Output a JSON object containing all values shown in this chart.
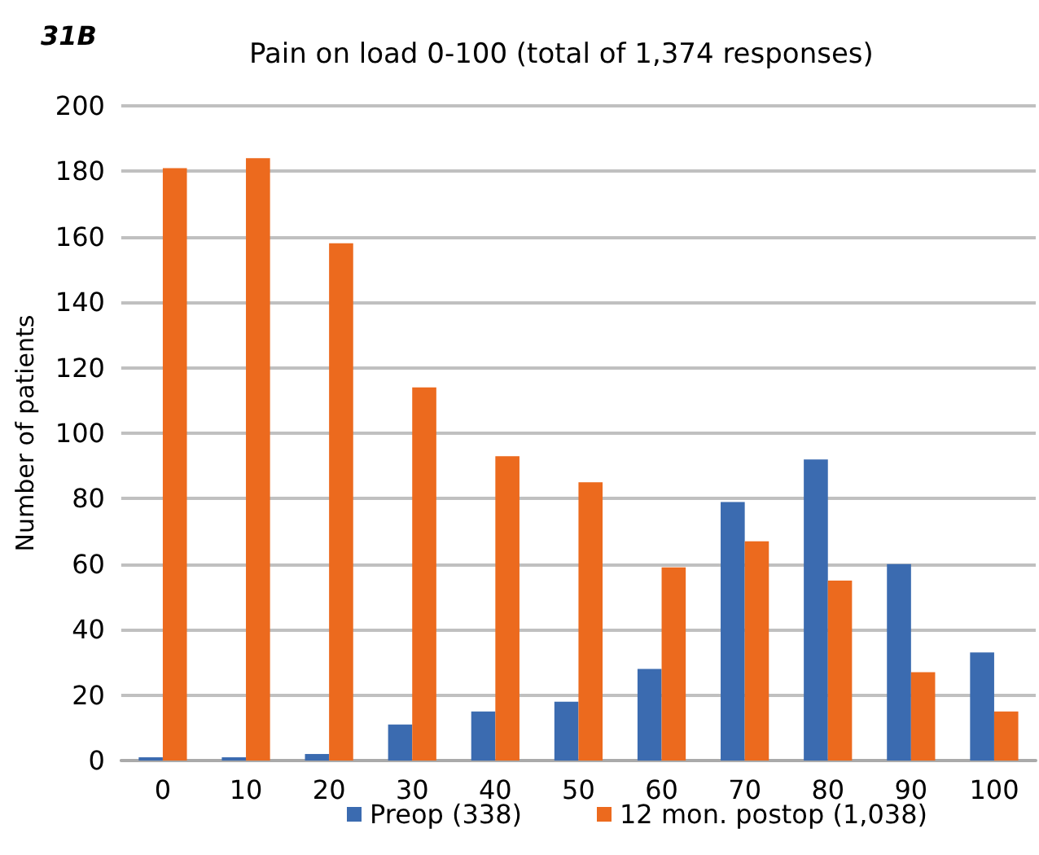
{
  "chart_data": {
    "type": "bar",
    "title": "Pain on load 0-100 (total of 1,374 responses)",
    "ylabel": "Number of patients",
    "annotations": [
      "31B"
    ],
    "categories": [
      "0",
      "10",
      "20",
      "30",
      "40",
      "50",
      "60",
      "70",
      "80",
      "90",
      "100"
    ],
    "series": [
      {
        "name": "Preop (338)",
        "color": "#3b6bb0",
        "values": [
          1,
          1,
          2,
          11,
          15,
          18,
          28,
          79,
          92,
          60,
          33
        ]
      },
      {
        "name": "12 mon. postop (1,038)",
        "color": "#ec6a1e",
        "values": [
          181,
          184,
          158,
          114,
          93,
          85,
          59,
          67,
          55,
          27,
          15
        ]
      }
    ],
    "ylim": [
      0,
      200
    ],
    "yticks": [
      0,
      20,
      40,
      60,
      80,
      100,
      120,
      140,
      160,
      180,
      200
    ],
    "grid": "y",
    "legend": "bottom"
  }
}
